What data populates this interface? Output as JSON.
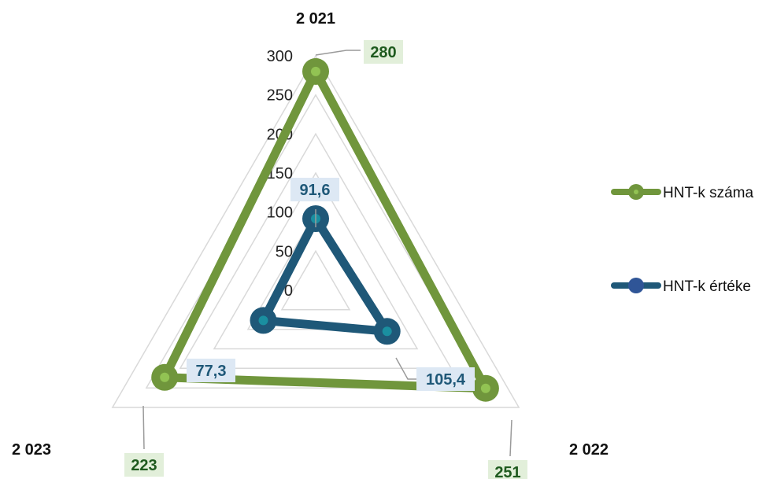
{
  "chart_data": {
    "type": "radar",
    "categories": [
      "2 021",
      "2 022",
      "2 023"
    ],
    "rlim": [
      0,
      300
    ],
    "ticks": [
      "0",
      "50",
      "100",
      "150",
      "200",
      "250",
      "300"
    ],
    "tick_values": [
      0,
      50,
      100,
      150,
      200,
      250,
      300
    ],
    "grid": true,
    "legend_position": "right",
    "series": [
      {
        "name": "HNT-k száma",
        "values": [
          280,
          251,
          223
        ],
        "labels": [
          "280",
          "251",
          "223"
        ],
        "color": "#70963c",
        "label_bg": "#e2efda",
        "label_color": "#1e5a1e"
      },
      {
        "name": "HNT-k értéke",
        "values": [
          91.6,
          105.4,
          77.3
        ],
        "labels": [
          "91,6",
          "105,4",
          "77,3"
        ],
        "color": "#1f5878",
        "label_bg": "#dde8f4",
        "label_color": "#1f5878"
      }
    ]
  }
}
